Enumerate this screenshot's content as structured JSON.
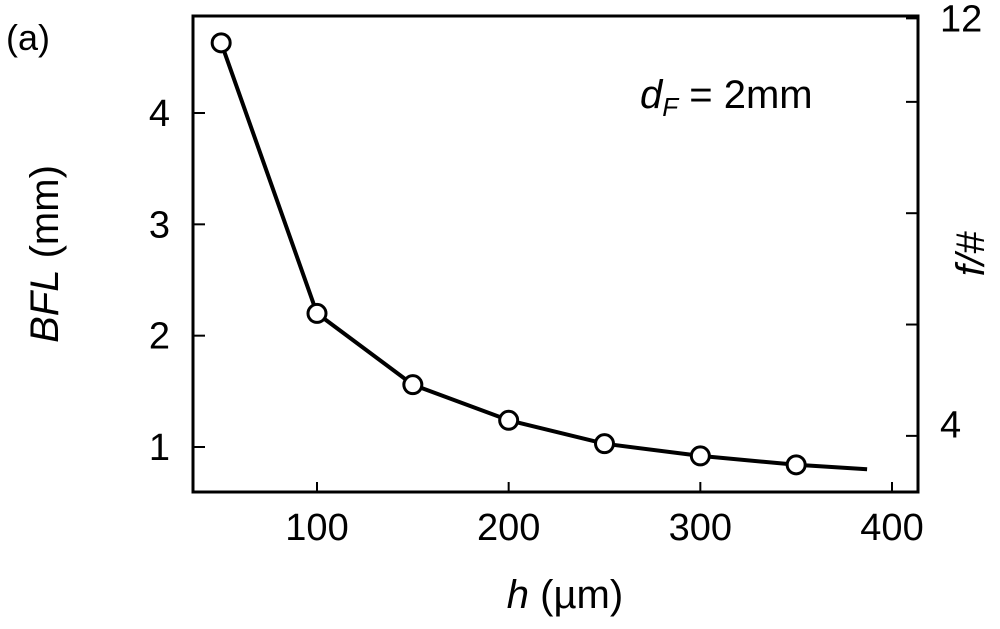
{
  "panel_label": "(a)",
  "chart_data": {
    "type": "line",
    "x": [
      50,
      100,
      150,
      200,
      250,
      300,
      350
    ],
    "series": [
      {
        "values": [
          4.63,
          2.2,
          1.56,
          1.24,
          1.03,
          0.92,
          0.84
        ]
      }
    ],
    "curve_end": {
      "x": 387,
      "y": 0.8
    },
    "xlim": [
      40,
      405
    ],
    "ylim": [
      0.5,
      4.8
    ],
    "xticks": [
      100,
      200,
      300,
      400
    ],
    "yticks": [
      1,
      2,
      3,
      4
    ],
    "right_axis": {
      "label_text": "f/#",
      "tick_labels": [
        "12",
        "4"
      ],
      "ticks_at_left_scale": [
        4.85,
        1.1,
        2.1,
        3.1,
        4.1
      ]
    },
    "xlabel": {
      "var": "h",
      "unit": "(µm)"
    },
    "ylabel": {
      "var": "BFL",
      "unit": "(mm)"
    },
    "annotation": {
      "var": "d",
      "sub": "F",
      "rest": " = 2mm"
    },
    "grid": false,
    "marker": "open-circle",
    "color": "#000000"
  }
}
